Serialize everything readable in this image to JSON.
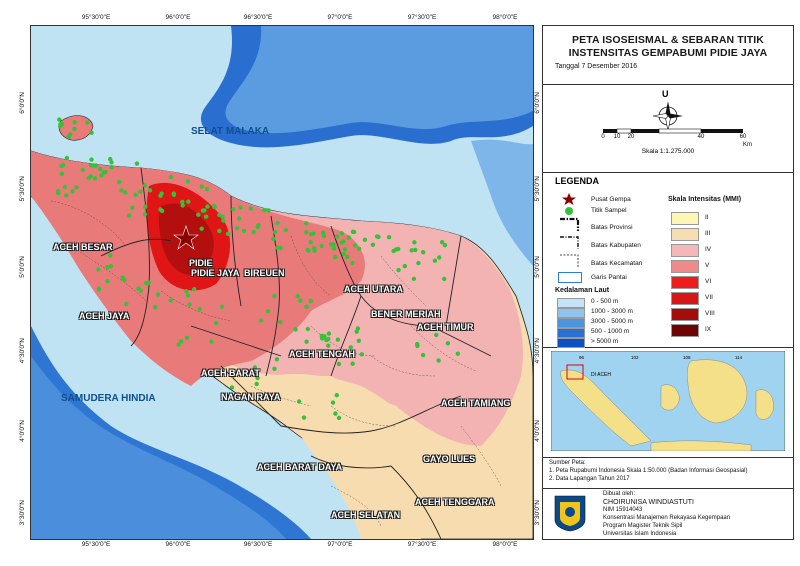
{
  "map": {
    "sea_labels": [
      "SELAT MALAKA",
      "SAMUDERA HINDIA"
    ],
    "region_labels": [
      "ACEH BESAR",
      "ACEH JAYA",
      "PIDIE",
      "PIDIE JAYA",
      "BIREUEN",
      "ACEH UTARA",
      "BENER MERIAH",
      "ACEH TIMUR",
      "ACEH TENGAH",
      "ACEH BARAT",
      "NAGAN RAYA",
      "ACEH TAMIANG",
      "ACEH BARAT DAYA",
      "GAYO LUES",
      "ACEH SELATAN",
      "ACEH TENGGARA"
    ],
    "lon_ticks": [
      "95°30'0\"E",
      "96°0'0\"E",
      "96°30'0\"E",
      "97°0'0\"E",
      "97°30'0\"E",
      "98°0'0\"E"
    ],
    "lat_ticks": [
      "6°0'0\"N",
      "5°30'0\"N",
      "5°0'0\"N",
      "4°30'0\"N",
      "4°0'0\"N",
      "3°30'0\"N"
    ]
  },
  "title": {
    "line1": "PETA ISOSEISMAL & SEBARAN TITIK",
    "line2": "INSTENSITAS GEMPABUMI PIDIE JAYA",
    "date": "Tanggal 7 Desember 2016"
  },
  "compass": {
    "north": "U",
    "scale_text": "Skala 1:1.275.000",
    "scale_ticks": [
      "0",
      "10",
      "20",
      "40",
      "60"
    ],
    "scale_unit": "Km"
  },
  "legend": {
    "title": "LEGENDA",
    "symbols": [
      "Pusat Gempa",
      "Titik Sampel",
      "Batas Provinsi",
      "Batas Kabupaten",
      "Batas Kecamatan",
      "Garis Pantai"
    ],
    "depth_title": "Kedalaman Laut",
    "depth": [
      {
        "label": "0 - 500 m",
        "color": "#c4e3f7"
      },
      {
        "label": "1000 - 3000 m",
        "color": "#8fc3ee"
      },
      {
        "label": "3000 - 5000 m",
        "color": "#4f95de"
      },
      {
        "label": "500 - 1000 m",
        "color": "#2b6fd1"
      },
      {
        "label": "> 5000 m",
        "color": "#0f4fc4"
      }
    ],
    "mmi_title": "Skala Intensitas (MMI)",
    "mmi": [
      {
        "label": "II",
        "color": "#fdf6b5"
      },
      {
        "label": "III",
        "color": "#f7ddb2"
      },
      {
        "label": "IV",
        "color": "#f5b8b8"
      },
      {
        "label": "V",
        "color": "#ee8a8a"
      },
      {
        "label": "VI",
        "color": "#ee1d1d"
      },
      {
        "label": "VII",
        "color": "#d71616"
      },
      {
        "label": "VIII",
        "color": "#a50d0d"
      },
      {
        "label": "IX",
        "color": "#6d0505"
      }
    ]
  },
  "inset": {
    "lon_ticks": [
      "96",
      "102",
      "108",
      "114"
    ],
    "aceh_label": "DI ACEH"
  },
  "source": {
    "heading": "Sumber Peta:",
    "line1": "1. Peta Rupabumi Indonesia Skala 1:50.000 (Badan Informasi Geospasial)",
    "line2": "2. Data Lapangan Tahun 2017"
  },
  "credit": {
    "heading": "Dibuat oleh:",
    "name": "CHOIRUNISA WINDIASTUTI",
    "nim": "NIM 15914043",
    "line1": "Konsentrasi Manajemen Rekayasa Kegempaan",
    "line2": "Program Magister Teknik Sipil",
    "line3": "Universitas Islam Indonesia"
  },
  "colors": {
    "land_red": "#e97a7a",
    "land_pink": "#f3b3b3",
    "land_tan": "#f7dcb0",
    "epicenter_red": "#e01616",
    "sample_green": "#35c13a",
    "sea_light": "#bfe3f3",
    "sea_deep": "#2a6fd0"
  }
}
